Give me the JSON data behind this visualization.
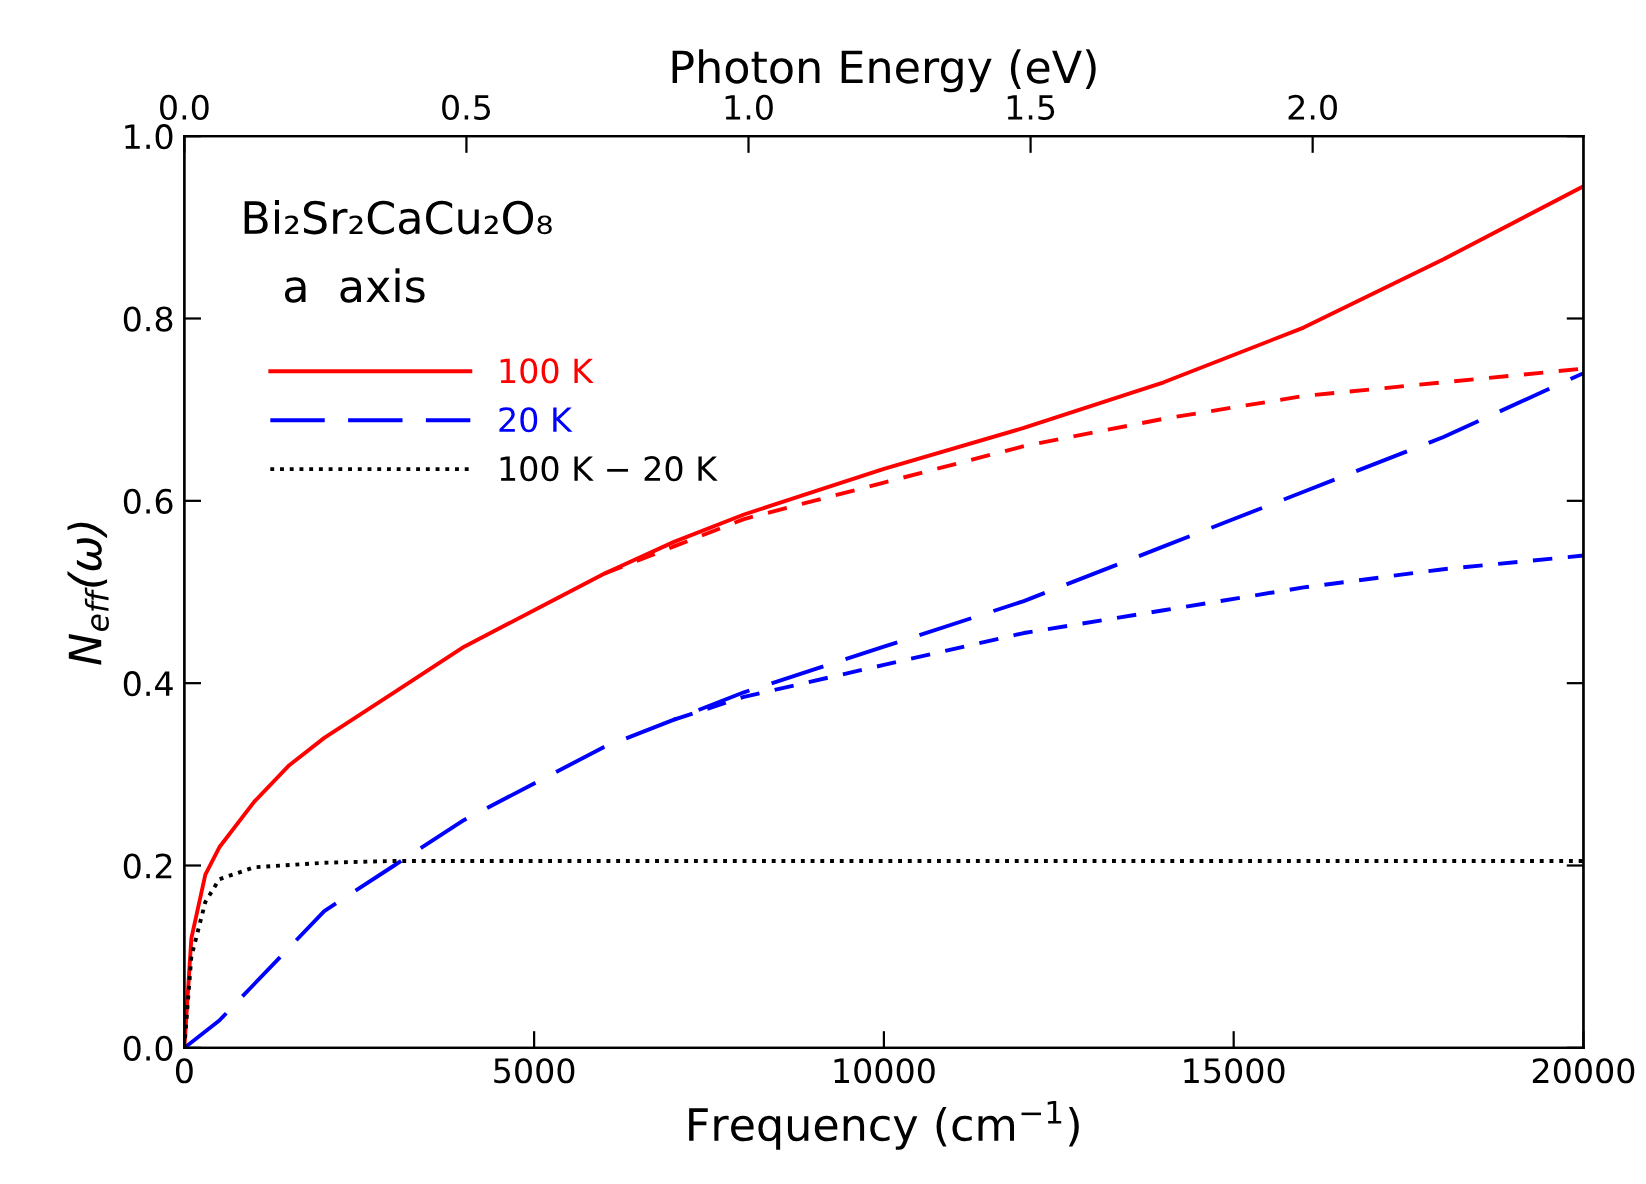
{
  "chart_data": {
    "type": "line",
    "xlabel": "Frequency (cm$^{−1}$)",
    "ylabel": "N$_{eff}$(ω)",
    "x2label": "Photon Energy (eV)",
    "xlim": [
      0,
      20000
    ],
    "xticks": [
      0,
      5000,
      10000,
      15000,
      20000
    ],
    "ylim": [
      0,
      1.0
    ],
    "yticks": [
      {
        "value": 0,
        "label": "0.0"
      },
      {
        "value": 0.2,
        "label": "0.2"
      },
      {
        "value": 0.4,
        "label": "0.4"
      },
      {
        "value": 0.6,
        "label": "0.6"
      },
      {
        "value": 0.8,
        "label": "0.8"
      },
      {
        "value": 1.0,
        "label": "1.0"
      }
    ],
    "x2lim": [
      0,
      2.48
    ],
    "x2ticks": [
      {
        "value": 0,
        "label": "0.0"
      },
      {
        "value": 0.5,
        "label": "0.5"
      },
      {
        "value": 1.0,
        "label": "1.0"
      },
      {
        "value": 1.5,
        "label": "1.5"
      },
      {
        "value": 2.0,
        "label": "2.0"
      }
    ],
    "annotations": [
      "Bi₂Sr₂CaCu₂O₈",
      "a  axis"
    ],
    "legend": "top left",
    "grid": false,
    "marker": "none",
    "series": [
      {
        "name": "100 K",
        "color": "#ff0000",
        "line_style": "solid",
        "x": [
          0,
          100,
          300,
          500,
          1000,
          1500,
          2000,
          3000,
          4000,
          5000,
          6000,
          7000,
          8000,
          9000,
          10000,
          12000,
          14000,
          16000,
          18000,
          20000
        ],
        "values": [
          0,
          0.12,
          0.19,
          0.22,
          0.27,
          0.31,
          0.34,
          0.39,
          0.44,
          0.48,
          0.52,
          0.555,
          0.585,
          0.61,
          0.635,
          0.68,
          0.73,
          0.79,
          0.865,
          0.945
        ]
      },
      {
        "name": "20 K",
        "color": "#0000ff",
        "line_style": "longdash",
        "x": [
          0,
          500,
          1000,
          1500,
          2000,
          3000,
          4000,
          5000,
          6000,
          7000,
          8000,
          10000,
          12000,
          14000,
          16000,
          18000,
          20000
        ],
        "values": [
          0,
          0.03,
          0.07,
          0.11,
          0.15,
          0.2,
          0.25,
          0.29,
          0.33,
          0.36,
          0.39,
          0.44,
          0.49,
          0.55,
          0.61,
          0.67,
          0.74
        ]
      },
      {
        "name": "100 K − 20 K",
        "color": "#000000",
        "line_style": "dotted",
        "x": [
          0,
          100,
          300,
          500,
          1000,
          2000,
          3000,
          20000
        ],
        "values": [
          0,
          0.1,
          0.16,
          0.185,
          0.198,
          0.203,
          0.205,
          0.205
        ]
      },
      {
        "color": "#ff0000",
        "line_style": "dashed",
        "x": [
          6000,
          7000,
          8000,
          10000,
          12000,
          14000,
          16000,
          18000,
          20000
        ],
        "values": [
          0.52,
          0.55,
          0.58,
          0.62,
          0.66,
          0.69,
          0.715,
          0.73,
          0.745
        ]
      },
      {
        "color": "#0000ff",
        "line_style": "dashed",
        "x": [
          7000,
          8000,
          10000,
          12000,
          14000,
          16000,
          18000,
          20000
        ],
        "values": [
          0.36,
          0.385,
          0.42,
          0.455,
          0.48,
          0.505,
          0.525,
          0.54
        ]
      }
    ]
  }
}
